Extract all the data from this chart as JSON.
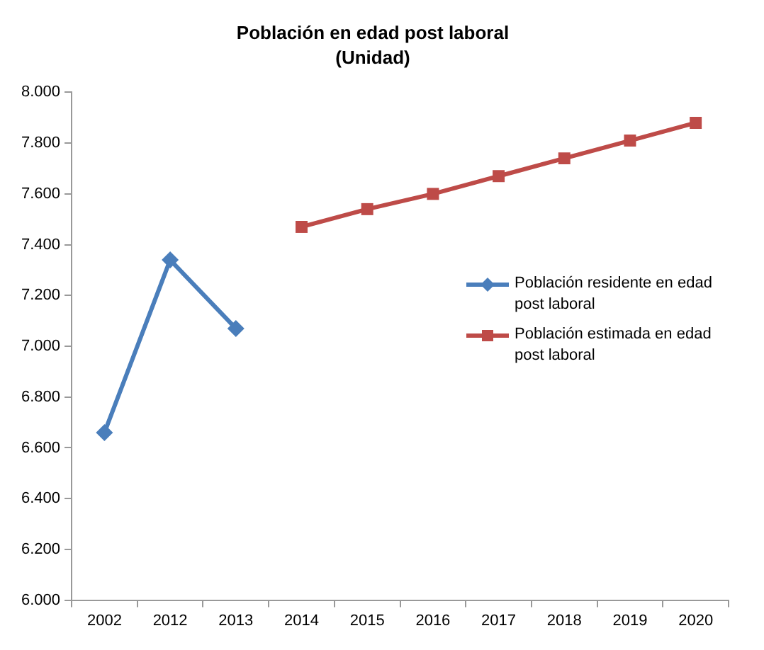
{
  "chart_data": {
    "type": "line",
    "title": "Población en edad post laboral",
    "subtitle": "(Unidad)",
    "categories": [
      "2002",
      "2012",
      "2013",
      "2014",
      "2015",
      "2016",
      "2017",
      "2018",
      "2019",
      "2020"
    ],
    "series": [
      {
        "name": "Población residente en edad post laboral",
        "color": "#4a7ebb",
        "marker": "diamond",
        "values": [
          6660,
          7340,
          7070,
          null,
          null,
          null,
          null,
          null,
          null,
          null
        ]
      },
      {
        "name": "Población estimada en edad post laboral",
        "color": "#be4b48",
        "marker": "square",
        "values": [
          null,
          null,
          null,
          7470,
          7540,
          7600,
          7670,
          7740,
          7810,
          7880
        ]
      }
    ],
    "ylim": [
      6000,
      8000
    ],
    "yticks": [
      {
        "value": 6000,
        "label": "6.000"
      },
      {
        "value": 6200,
        "label": "6.200"
      },
      {
        "value": 6400,
        "label": "6.400"
      },
      {
        "value": 6600,
        "label": "6.600"
      },
      {
        "value": 6800,
        "label": "6.800"
      },
      {
        "value": 7000,
        "label": "7.000"
      },
      {
        "value": 7200,
        "label": "7.200"
      },
      {
        "value": 7400,
        "label": "7.400"
      },
      {
        "value": 7600,
        "label": "7.600"
      },
      {
        "value": 7800,
        "label": "7.800"
      },
      {
        "value": 8000,
        "label": "8.000"
      }
    ],
    "grid": false,
    "legend": "right",
    "line_style": "solid"
  }
}
